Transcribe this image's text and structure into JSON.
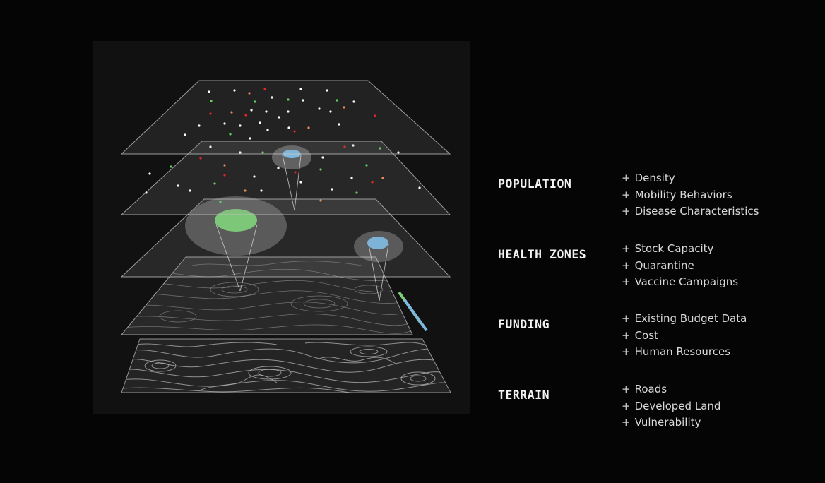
{
  "diagram": {
    "name": "stacked-data-layers",
    "colors": {
      "background": "#111111",
      "plane_fill": "#9a9a9a",
      "plane_stroke": "#bfbfbf",
      "contour": "#b5b5b5",
      "dot_white": "#ffffff",
      "dot_green": "#5fd35f",
      "dot_red": "#e02525",
      "dot_orange": "#f08a5a",
      "zone_green": "#7ecf7a",
      "zone_blue": "#7fb8de"
    }
  },
  "legend": [
    {
      "title": "POPULATION",
      "items": [
        "Density",
        "Mobility Behaviors",
        "Disease Characteristics"
      ]
    },
    {
      "title": "HEALTH ZONES",
      "items": [
        "Stock Capacity",
        "Quarantine",
        "Vaccine Campaigns"
      ]
    },
    {
      "title": "FUNDING",
      "items": [
        "Existing Budget Data",
        "Cost",
        "Human Resources"
      ]
    },
    {
      "title": "TERRAIN",
      "items": [
        "Roads",
        "Developed Land",
        "Vulnerability"
      ]
    }
  ],
  "item_prefix": "+"
}
